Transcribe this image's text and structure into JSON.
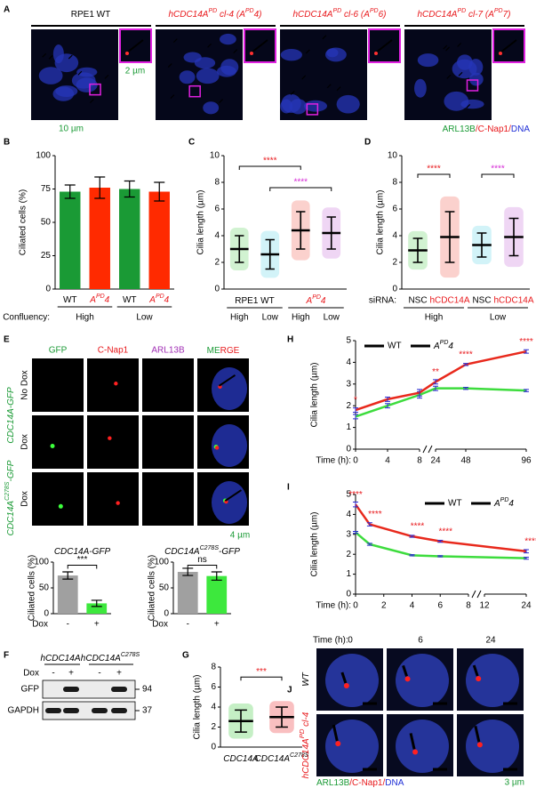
{
  "A": {
    "letter": "A",
    "headers": [
      [
        "RPE1 WT"
      ],
      [
        "hCDC14A",
        "PD",
        " cl-4 (A",
        "PD",
        "4)"
      ],
      [
        "hCDC14A",
        "PD",
        " cl-6 (A",
        "PD",
        "6)"
      ],
      [
        "hCDC14A",
        "PD",
        " cl-7 (A",
        "PD",
        "7)"
      ]
    ],
    "header_colors": [
      "#000000",
      "#e8191c",
      "#e8191c",
      "#e8191c"
    ],
    "inset_scale": "2 µm",
    "scale": "10 µm",
    "legend": [
      "ARL13B",
      "/C-Nap1/",
      "DNA"
    ],
    "legend_colors": [
      "#1a9a35",
      "#e8191c",
      "#1f2fd6"
    ]
  },
  "B": {
    "letter": "B",
    "type": "bar",
    "ylabel": "Ciliated cells (%)",
    "ylim": [
      0,
      100
    ],
    "yticks": [
      0,
      25,
      50,
      75,
      100
    ],
    "categories": [
      [
        "WT"
      ],
      [
        "A",
        "PD",
        "4"
      ],
      [
        "WT"
      ],
      [
        "A",
        "PD",
        "4"
      ]
    ],
    "category_colors": [
      "#000000",
      "#e8191c",
      "#000000",
      "#e8191c"
    ],
    "values": [
      73,
      76,
      75,
      73
    ],
    "errors": [
      5,
      8,
      6,
      7
    ],
    "colors": [
      "#1a9a35",
      "#ff2a00",
      "#1a9a35",
      "#ff2a00"
    ],
    "group_title": "Confluency:",
    "groups": [
      "High",
      "Low"
    ]
  },
  "C": {
    "letter": "C",
    "type": "dot",
    "ylabel": "Cilia length (µm)",
    "ylim": [
      0,
      10
    ],
    "yticks": [
      0,
      2,
      4,
      6,
      8,
      10
    ],
    "groups": [
      [
        "RPE1 WT"
      ],
      [
        "A",
        "PD",
        "4"
      ]
    ],
    "categories": [
      "High",
      "Low",
      "High",
      "Low"
    ],
    "means": [
      3.0,
      2.6,
      4.4,
      4.2
    ],
    "sd": [
      1.0,
      1.1,
      1.4,
      1.2
    ],
    "colors": [
      "#5bd15b",
      "#5ed4e6",
      "#ef5a4c",
      "#c76ad8"
    ],
    "significance": [
      "****",
      "****"
    ],
    "significance_colors": [
      "#e8191c",
      "#d62ad6"
    ]
  },
  "D": {
    "letter": "D",
    "type": "dot",
    "ylabel": "Cilia length (µm)",
    "ylim": [
      0,
      10
    ],
    "yticks": [
      0,
      2,
      4,
      6,
      8,
      10
    ],
    "group_title": "siRNA:",
    "categories": [
      "NSC",
      "hCDC14A",
      "NSC",
      "hCDC14A"
    ],
    "category_colors": [
      "#000000",
      "#e8191c",
      "#000000",
      "#e8191c"
    ],
    "groups": [
      "High",
      "Low"
    ],
    "means": [
      2.9,
      3.9,
      3.3,
      3.9
    ],
    "sd": [
      0.9,
      1.9,
      0.9,
      1.4
    ],
    "colors": [
      "#5bd15b",
      "#ef5a4c",
      "#5ed4e6",
      "#c76ad8"
    ],
    "significance": [
      "****",
      "****"
    ],
    "significance_colors": [
      "#e8191c",
      "#d62ad6"
    ]
  },
  "E": {
    "letter": "E",
    "columns": [
      "GFP",
      "C-Nap1",
      "ARL13B"
    ],
    "column_colors": [
      "#1a9a35",
      "#e8191c",
      "#a12fb5"
    ],
    "merge": [
      "ME",
      "RGE"
    ],
    "merge_colors": [
      "#1a9a35",
      "#e8191c"
    ],
    "rows": [
      "No Dox",
      "Dox",
      "Dox"
    ],
    "constructs": [
      [
        "CDC14A-GFP"
      ],
      [
        "CDC14A",
        "C278S",
        "-GFP"
      ]
    ],
    "construct_color": "#1a9a35",
    "scale": "4 µm",
    "charts": [
      {
        "type": "bar",
        "title": [
          "CDC14A-GFP"
        ],
        "ylabel": "Ciliated cells (%)",
        "xlabel": "Dox",
        "categories": [
          "-",
          "+"
        ],
        "values": [
          74,
          20
        ],
        "errors": [
          7,
          6
        ],
        "colors": [
          "#a0a0a0",
          "#3de83d"
        ],
        "ylim": [
          0,
          100
        ],
        "yticks": [
          0,
          50,
          100
        ],
        "significance": "***"
      },
      {
        "type": "bar",
        "title": [
          "CDC14A",
          "C278S",
          "-GFP"
        ],
        "ylabel": "Ciliated cells (%)",
        "xlabel": "Dox",
        "categories": [
          "-",
          "+"
        ],
        "values": [
          81,
          73
        ],
        "errors": [
          7,
          8
        ],
        "colors": [
          "#a0a0a0",
          "#3de83d"
        ],
        "ylim": [
          0,
          100
        ],
        "yticks": [
          0,
          50,
          100
        ],
        "significance": "ns"
      }
    ]
  },
  "F": {
    "letter": "F",
    "groups": [
      [
        "hCDC14A"
      ],
      [
        "hCDC14A",
        "C278S"
      ]
    ],
    "treatment": "Dox",
    "lanes": [
      "-",
      "+",
      "-",
      "+"
    ],
    "bands": [
      {
        "name": "GFP",
        "size": "94"
      },
      {
        "name": "GAPDH",
        "size": "37"
      }
    ]
  },
  "G": {
    "letter": "G",
    "type": "dot",
    "ylabel": "Cilia length (µm)",
    "ylim": [
      0,
      8
    ],
    "yticks": [
      0,
      2,
      4,
      6,
      8
    ],
    "categories": [
      [
        "CDC14A"
      ],
      [
        "CDC14A",
        "C278S"
      ]
    ],
    "means": [
      2.6,
      3.0
    ],
    "sd": [
      1.1,
      1.0
    ],
    "colors": [
      "#2ec42e",
      "#e8191c"
    ],
    "significance": "***",
    "significance_color": "#e8191c"
  },
  "H": {
    "letter": "H",
    "type": "line",
    "ylabel": "Cilia length (µm)",
    "xlabel": "Time (h):",
    "x": [
      0,
      4,
      8,
      24,
      48,
      96
    ],
    "xlim": [
      [
        0,
        8
      ],
      [
        24,
        96
      ]
    ],
    "xticks": [
      0,
      4,
      8,
      24,
      48,
      96
    ],
    "ylim": [
      0,
      5
    ],
    "yticks": [
      0,
      1,
      2,
      3,
      4,
      5
    ],
    "series": [
      {
        "name": "WT",
        "color": "#3ddc3d",
        "values": [
          1.5,
          2.0,
          2.5,
          2.8,
          2.8,
          2.7
        ],
        "errors": [
          0.1,
          0.1,
          0.15,
          0.1,
          0.05,
          0.05
        ]
      },
      {
        "name": [
          "A",
          "PD",
          "4"
        ],
        "color": "#e8291c",
        "values": [
          1.8,
          2.3,
          2.6,
          3.1,
          3.9,
          4.5
        ],
        "errors": [
          0.1,
          0.1,
          0.15,
          0.1,
          0.05,
          0.08
        ]
      }
    ],
    "significance": [
      "*",
      null,
      null,
      "**",
      "****",
      "****"
    ],
    "significance_color": "#e8191c"
  },
  "I": {
    "letter": "I",
    "type": "line",
    "ylabel": "Cilia length (µm)",
    "xlabel": "Time (h):",
    "x": [
      0,
      1,
      4,
      6,
      24
    ],
    "xlim": [
      [
        0,
        8
      ],
      [
        12,
        24
      ]
    ],
    "xticks": [
      0,
      2,
      4,
      6,
      8,
      12,
      24
    ],
    "ylim": [
      0,
      5
    ],
    "yticks": [
      0,
      1,
      2,
      3,
      4,
      5
    ],
    "series": [
      {
        "name": "WT",
        "color": "#3ddc3d",
        "values": [
          3.1,
          2.5,
          1.95,
          1.9,
          1.8
        ],
        "errors": [
          0.05,
          0.05,
          0.03,
          0.03,
          0.05
        ]
      },
      {
        "name": [
          "A",
          "PD",
          "4"
        ],
        "color": "#e8291c",
        "values": [
          4.5,
          3.5,
          2.9,
          2.65,
          2.15
        ],
        "errors": [
          0.12,
          0.08,
          0.05,
          0.05,
          0.08
        ]
      }
    ],
    "significance": [
      "****",
      "****",
      "****",
      "****",
      "****"
    ],
    "significance_color": "#e8191c"
  },
  "J": {
    "letter": "J",
    "time_label": "Time (h):",
    "times": [
      "0",
      "6",
      "24"
    ],
    "rows": [
      [
        "WT"
      ],
      [
        "hCDC14A",
        "PD",
        " cl-4"
      ]
    ],
    "row_colors": [
      "#000000",
      "#e8191c"
    ],
    "legend": [
      "ARL13B",
      "/C-Nap1/",
      "DNA"
    ],
    "legend_colors": [
      "#1a9a35",
      "#e8191c",
      "#1f2fd6"
    ],
    "scale": "3 µm",
    "scale_color": "#1a9a35"
  }
}
